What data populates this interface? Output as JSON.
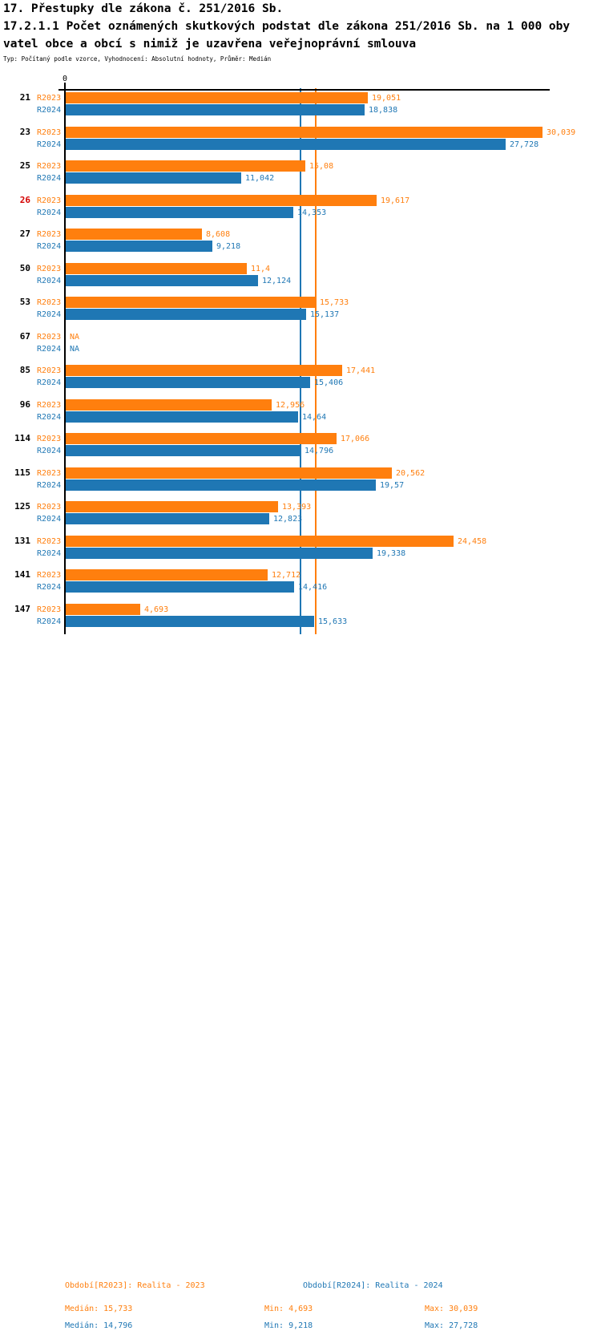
{
  "header": {
    "line1": "17. Přestupky dle zákona č. 251/2016 Sb.",
    "line2": "17.2.1.1 Počet oznámených skutkových podstat dle zákona 251/2016 Sb. na 1 000 oby",
    "line3": "vatel obce a obcí s nimiž je uzavřena veřejnoprávní smlouva",
    "line4": "Typ: Počítaný podle vzorce, Vyhodnocení: Absolutní hodnoty, Průměr: Medián"
  },
  "colors": {
    "r2023": "#ff7f0e",
    "r2024": "#1f77b4",
    "highlight_category": "#d40000",
    "category": "#000000",
    "axis": "#000000"
  },
  "chart_data": {
    "type": "bar",
    "orientation": "horizontal",
    "axis_zero_label": "0",
    "axis_range": [
      0,
      30.5
    ],
    "grid": false,
    "series_names": [
      "R2023",
      "R2024"
    ],
    "highlighted_category": "26",
    "na_label": "NA",
    "medians": {
      "r2023": 15.733,
      "r2024": 14.796
    },
    "categories": [
      "21",
      "23",
      "25",
      "26",
      "27",
      "50",
      "53",
      "67",
      "85",
      "96",
      "114",
      "115",
      "125",
      "131",
      "141",
      "147"
    ],
    "rows": [
      {
        "category": "21",
        "r2023": {
          "value": 19.051,
          "label": "19,051"
        },
        "r2024": {
          "value": 18.838,
          "label": "18,838"
        }
      },
      {
        "category": "23",
        "r2023": {
          "value": 30.039,
          "label": "30,039"
        },
        "r2024": {
          "value": 27.728,
          "label": "27,728"
        }
      },
      {
        "category": "25",
        "r2023": {
          "value": 15.08,
          "label": "15,08"
        },
        "r2024": {
          "value": 11.042,
          "label": "11,042"
        }
      },
      {
        "category": "26",
        "r2023": {
          "value": 19.617,
          "label": "19,617"
        },
        "r2024": {
          "value": 14.353,
          "label": "14,353"
        }
      },
      {
        "category": "27",
        "r2023": {
          "value": 8.608,
          "label": "8,608"
        },
        "r2024": {
          "value": 9.218,
          "label": "9,218"
        }
      },
      {
        "category": "50",
        "r2023": {
          "value": 11.4,
          "label": "11,4"
        },
        "r2024": {
          "value": 12.124,
          "label": "12,124"
        }
      },
      {
        "category": "53",
        "r2023": {
          "value": 15.733,
          "label": "15,733"
        },
        "r2024": {
          "value": 15.137,
          "label": "15,137"
        }
      },
      {
        "category": "67",
        "r2023": {
          "value": null,
          "label": "NA"
        },
        "r2024": {
          "value": null,
          "label": "NA"
        }
      },
      {
        "category": "85",
        "r2023": {
          "value": 17.441,
          "label": "17,441"
        },
        "r2024": {
          "value": 15.406,
          "label": "15,406"
        }
      },
      {
        "category": "96",
        "r2023": {
          "value": 12.956,
          "label": "12,956"
        },
        "r2024": {
          "value": 14.64,
          "label": "14,64"
        }
      },
      {
        "category": "114",
        "r2023": {
          "value": 17.066,
          "label": "17,066"
        },
        "r2024": {
          "value": 14.796,
          "label": "14,796"
        }
      },
      {
        "category": "115",
        "r2023": {
          "value": 20.562,
          "label": "20,562"
        },
        "r2024": {
          "value": 19.57,
          "label": "19,57"
        }
      },
      {
        "category": "125",
        "r2023": {
          "value": 13.393,
          "label": "13,393"
        },
        "r2024": {
          "value": 12.823,
          "label": "12,823"
        }
      },
      {
        "category": "131",
        "r2023": {
          "value": 24.458,
          "label": "24,458"
        },
        "r2024": {
          "value": 19.338,
          "label": "19,338"
        }
      },
      {
        "category": "141",
        "r2023": {
          "value": 12.712,
          "label": "12,712"
        },
        "r2024": {
          "value": 14.416,
          "label": "14,416"
        }
      },
      {
        "category": "147",
        "r2023": {
          "value": 4.693,
          "label": "4,693"
        },
        "r2024": {
          "value": 15.633,
          "label": "15,633"
        }
      }
    ]
  },
  "legend": {
    "r2023_label": "Období[R2023]: Realita - 2023",
    "r2024_label": "Období[R2024]: Realita - 2024",
    "r2023_stats": {
      "median": "Medián: 15,733",
      "min": "Min: 4,693",
      "max": "Max: 30,039"
    },
    "r2024_stats": {
      "median": "Medián: 14,796",
      "min": "Min: 9,218",
      "max": "Max: 27,728"
    }
  }
}
